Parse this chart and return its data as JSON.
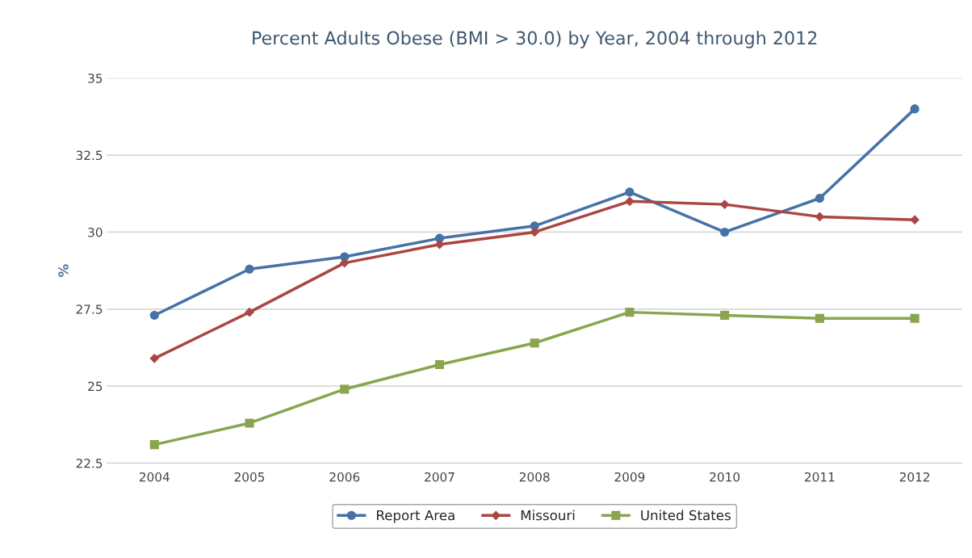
{
  "chart_data": {
    "type": "line",
    "title": "Percent Adults Obese (BMI > 30.0) by Year, 2004 through 2012",
    "ylabel": "%",
    "categories": [
      "2004",
      "2005",
      "2006",
      "2007",
      "2008",
      "2009",
      "2010",
      "2011",
      "2012"
    ],
    "series": [
      {
        "name": "Report Area",
        "color": "#4572a7",
        "marker": "circle",
        "values": [
          27.3,
          28.8,
          29.2,
          29.8,
          30.2,
          31.3,
          30.0,
          31.1,
          34.0
        ]
      },
      {
        "name": "Missouri",
        "color": "#aa4643",
        "marker": "diamond",
        "values": [
          25.9,
          27.4,
          29.0,
          29.6,
          30.0,
          31.0,
          30.9,
          30.5,
          30.4
        ]
      },
      {
        "name": "United States",
        "color": "#89a54e",
        "marker": "square",
        "values": [
          23.1,
          23.8,
          24.9,
          25.7,
          26.4,
          27.4,
          27.3,
          27.2,
          27.2
        ]
      }
    ],
    "ylim": [
      22.5,
      35
    ],
    "yticks": [
      22.5,
      25,
      27.5,
      30,
      32.5,
      35
    ],
    "grid": "y",
    "legend": "bottom",
    "line_style": "solid"
  }
}
